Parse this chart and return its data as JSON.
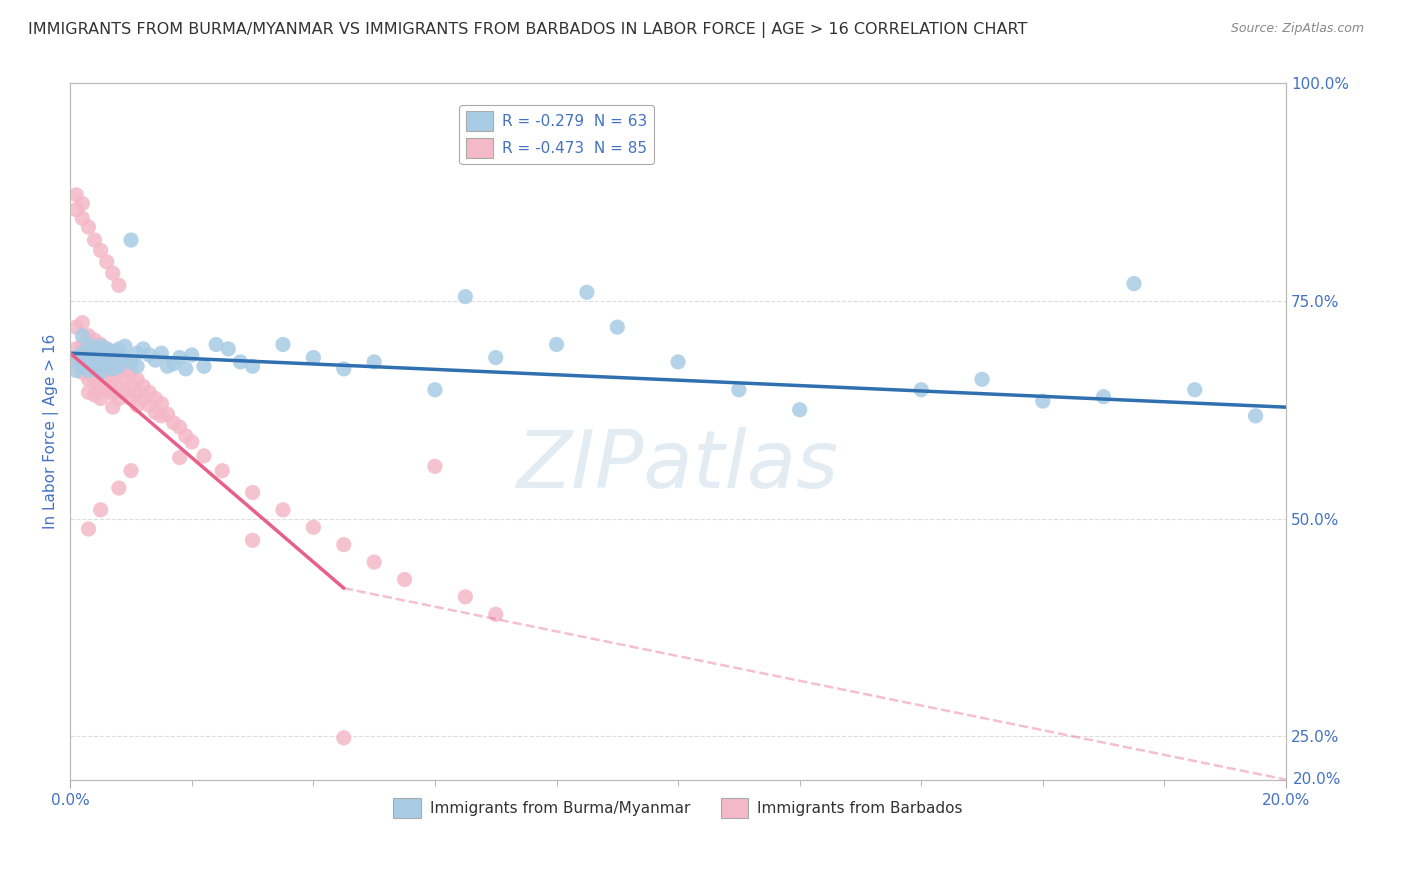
{
  "title": "IMMIGRANTS FROM BURMA/MYANMAR VS IMMIGRANTS FROM BARBADOS IN LABOR FORCE | AGE > 16 CORRELATION CHART",
  "source": "Source: ZipAtlas.com",
  "ylabel_label": "In Labor Force | Age > 16",
  "xmin": 0.0,
  "xmax": 0.2,
  "ymin": 0.2,
  "ymax": 1.0,
  "legend1_label": "R = -0.279  N = 63",
  "legend2_label": "R = -0.473  N = 85",
  "legend_xlabel": "Immigrants from Burma/Myanmar",
  "legend_xlabel2": "Immigrants from Barbados",
  "blue_color": "#a8cce4",
  "pink_color": "#f4b8c8",
  "blue_line_color": "#3070b0",
  "pink_line_color": "#e8608a",
  "watermark_color": "#c8d8e8",
  "watermark": "ZIPatlas",
  "blue_scatter_x": [
    0.001,
    0.001,
    0.002,
    0.002,
    0.002,
    0.003,
    0.003,
    0.003,
    0.003,
    0.004,
    0.004,
    0.004,
    0.005,
    0.005,
    0.005,
    0.006,
    0.006,
    0.006,
    0.007,
    0.007,
    0.007,
    0.008,
    0.008,
    0.009,
    0.009,
    0.01,
    0.01,
    0.011,
    0.011,
    0.012,
    0.013,
    0.014,
    0.015,
    0.016,
    0.017,
    0.018,
    0.019,
    0.02,
    0.022,
    0.024,
    0.026,
    0.028,
    0.03,
    0.035,
    0.04,
    0.045,
    0.05,
    0.06,
    0.065,
    0.07,
    0.08,
    0.085,
    0.09,
    0.1,
    0.11,
    0.12,
    0.14,
    0.15,
    0.16,
    0.17,
    0.175,
    0.185,
    0.195
  ],
  "blue_scatter_y": [
    0.685,
    0.67,
    0.69,
    0.675,
    0.71,
    0.685,
    0.67,
    0.7,
    0.68,
    0.695,
    0.672,
    0.688,
    0.698,
    0.678,
    0.668,
    0.695,
    0.675,
    0.688,
    0.692,
    0.672,
    0.68,
    0.695,
    0.675,
    0.685,
    0.698,
    0.82,
    0.68,
    0.69,
    0.675,
    0.695,
    0.688,
    0.682,
    0.69,
    0.675,
    0.678,
    0.685,
    0.672,
    0.688,
    0.675,
    0.7,
    0.695,
    0.68,
    0.675,
    0.7,
    0.685,
    0.672,
    0.68,
    0.648,
    0.755,
    0.685,
    0.7,
    0.76,
    0.72,
    0.68,
    0.648,
    0.625,
    0.648,
    0.66,
    0.635,
    0.64,
    0.77,
    0.648,
    0.618
  ],
  "pink_scatter_x": [
    0.001,
    0.001,
    0.001,
    0.002,
    0.002,
    0.002,
    0.002,
    0.003,
    0.003,
    0.003,
    0.003,
    0.003,
    0.004,
    0.004,
    0.004,
    0.004,
    0.004,
    0.005,
    0.005,
    0.005,
    0.005,
    0.005,
    0.006,
    0.006,
    0.006,
    0.006,
    0.007,
    0.007,
    0.007,
    0.007,
    0.007,
    0.008,
    0.008,
    0.008,
    0.008,
    0.009,
    0.009,
    0.009,
    0.01,
    0.01,
    0.01,
    0.011,
    0.011,
    0.011,
    0.012,
    0.012,
    0.013,
    0.013,
    0.014,
    0.014,
    0.015,
    0.015,
    0.016,
    0.017,
    0.018,
    0.019,
    0.02,
    0.022,
    0.025,
    0.03,
    0.035,
    0.04,
    0.045,
    0.05,
    0.055,
    0.06,
    0.065,
    0.07,
    0.045,
    0.03,
    0.018,
    0.01,
    0.008,
    0.005,
    0.003,
    0.002,
    0.001,
    0.001,
    0.002,
    0.003,
    0.004,
    0.005,
    0.006,
    0.007,
    0.008
  ],
  "pink_scatter_y": [
    0.72,
    0.695,
    0.68,
    0.725,
    0.7,
    0.682,
    0.668,
    0.71,
    0.692,
    0.675,
    0.66,
    0.645,
    0.705,
    0.688,
    0.672,
    0.658,
    0.642,
    0.7,
    0.685,
    0.668,
    0.652,
    0.638,
    0.695,
    0.678,
    0.662,
    0.648,
    0.688,
    0.672,
    0.658,
    0.644,
    0.628,
    0.682,
    0.668,
    0.652,
    0.638,
    0.675,
    0.66,
    0.645,
    0.668,
    0.652,
    0.638,
    0.66,
    0.645,
    0.63,
    0.652,
    0.638,
    0.645,
    0.63,
    0.638,
    0.622,
    0.632,
    0.618,
    0.62,
    0.61,
    0.605,
    0.595,
    0.588,
    0.572,
    0.555,
    0.53,
    0.51,
    0.49,
    0.47,
    0.45,
    0.43,
    0.56,
    0.41,
    0.39,
    0.248,
    0.475,
    0.57,
    0.555,
    0.535,
    0.51,
    0.488,
    0.862,
    0.872,
    0.855,
    0.845,
    0.835,
    0.82,
    0.808,
    0.795,
    0.782,
    0.768
  ],
  "blue_trend_x": [
    0.0,
    0.2
  ],
  "blue_trend_y": [
    0.69,
    0.628
  ],
  "pink_trend_x": [
    0.0,
    0.045
  ],
  "pink_trend_y": [
    0.69,
    0.42
  ],
  "dashed_trend_x": [
    0.045,
    0.2
  ],
  "dashed_trend_y": [
    0.42,
    0.2
  ],
  "grid_color": "#dddddd",
  "title_color": "#333333",
  "axis_label_color": "#4472c4",
  "background_color": "#ffffff",
  "right_yticks": [
    0.25,
    0.5,
    0.75,
    1.0
  ],
  "right_ytick_labels": [
    "25.0%",
    "50.0%",
    "75.0%",
    "100.0%"
  ]
}
